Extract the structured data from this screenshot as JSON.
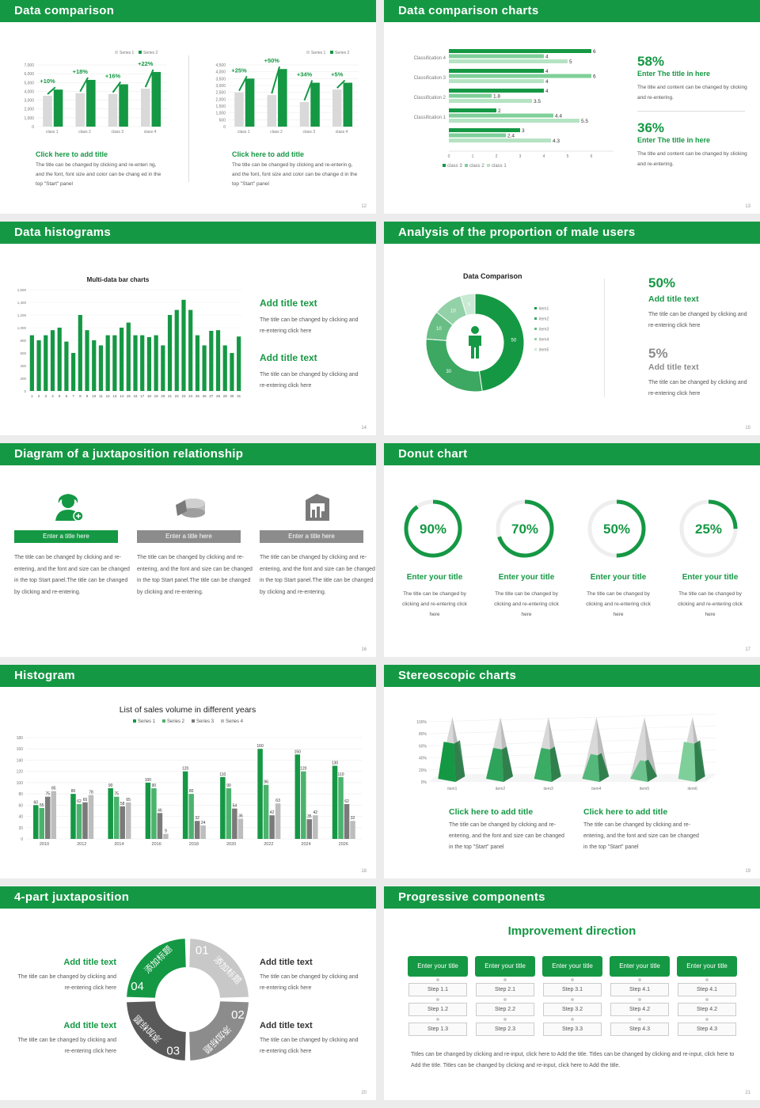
{
  "colors": {
    "green": "#159844",
    "light": "#7fcf9a",
    "pale": "#b5e3c3",
    "gray": "#d9d9d9",
    "dark": "#595959"
  },
  "slides": {
    "s12": {
      "header": "Data comparison",
      "page": "12",
      "legend": [
        "Series 1",
        "Series 2"
      ],
      "chart_left": {
        "yticks": [
          "7,000",
          "6,000",
          "5,000",
          "4,000",
          "3,000",
          "2,000",
          "1,000",
          "0"
        ]
      },
      "chart_right": {
        "yticks": [
          "4,500",
          "4,000",
          "3,500",
          "3,000",
          "2,500",
          "2,000",
          "1,500",
          "1,000",
          "500",
          "0"
        ]
      },
      "left": {
        "title": "Click here to add title",
        "body": "The title can be changed by clicking and re-enteri ng, and the font, font size and color can be chang ed in the top \"Start\" panel"
      },
      "right": {
        "title": "Click here to add title",
        "body": "The title can be changed by clicking and re-enterin g, and the font, font size and color can be change d in the top \"Start\" panel"
      }
    },
    "s13": {
      "header": "Data comparison charts",
      "page": "13",
      "stat1": {
        "value": "58%",
        "title": "Enter The title in here",
        "body": "The title and content can be changed by clicking and re-entering."
      },
      "stat2": {
        "value": "36%",
        "title": "Enter The title in here",
        "body": "The title and content can be changed by clicking and re-entering."
      }
    },
    "s14": {
      "header": "Data histograms",
      "page": "14",
      "block1": {
        "title": "Add title text",
        "body": "The title can be changed by clicking and re-entering click here"
      },
      "block2": {
        "title": "Add title text",
        "body": "The title can be changed by clicking and re-entering click here"
      }
    },
    "s15": {
      "header": "Analysis of the proportion of male users",
      "page": "15",
      "stat1": {
        "value": "50%",
        "title": "Add title text",
        "body": "The title can be changed by clicking and re-entering click here"
      },
      "stat2": {
        "value": "5%",
        "title": "Add title text",
        "body": "The title can be changed by clicking and re-entering click here"
      }
    },
    "s16": {
      "header": "Diagram of a juxtaposition relationship",
      "page": "16",
      "cols": [
        {
          "label": "Enter a title here",
          "body": "The title can be changed by clicking and re-entering, and the font and size can be changed in the top Start panel.The title can be changed by clicking and re-entering."
        },
        {
          "label": "Enter a title here",
          "body": "The title can be changed by clicking and re-entering, and the font and size can be changed in the top Start panel.The title can be changed by clicking and re-entering."
        },
        {
          "label": "Enter a title here",
          "body": "The title can be changed by clicking and re-entering, and the font and size can be changed in the top Start panel.The title can be changed by clicking and re-entering."
        }
      ]
    },
    "s17": {
      "header": "Donut chart",
      "page": "17",
      "items": [
        {
          "pct": "90%",
          "title": "Enter your title",
          "body": "The title can be changed by clicking and re-entering click here"
        },
        {
          "pct": "70%",
          "title": "Enter your title",
          "body": "The title can be changed by clicking and re-entering click here"
        },
        {
          "pct": "50%",
          "title": "Enter your title",
          "body": "The title can be changed by clicking and re-entering click here"
        },
        {
          "pct": "25%",
          "title": "Enter your title",
          "body": "The title can be changed by clicking and re-entering click here"
        }
      ]
    },
    "s18": {
      "header": "Histogram",
      "page": "18"
    },
    "s19": {
      "header": "Stereoscopic charts",
      "page": "19",
      "left": {
        "title": "Click here to add title",
        "body": "The title can be changed by clicking and re-entering, and the font and size can be changed in the top \"Start\" panel"
      },
      "right": {
        "title": "Click here to add title",
        "body": "The title can be changed by clicking and re-entering, and the font and size can be changed in the top \"Start\" panel"
      }
    },
    "s20": {
      "header": "4-part juxtaposition",
      "page": "20",
      "segments": [
        {
          "num": "01",
          "cn": "添加标题"
        },
        {
          "num": "02",
          "cn": "添加标题"
        },
        {
          "num": "03",
          "cn": "添加标题"
        },
        {
          "num": "04",
          "cn": "添加标题"
        }
      ],
      "blocks": [
        {
          "title": "Add title text",
          "body": "The title can be changed by clicking and re-entering click here"
        },
        {
          "title": "Add title text",
          "body": "The title can be changed by clicking and re-entering click here"
        },
        {
          "title": "Add title text",
          "body": "The title can be changed by clicking and re-entering click here"
        },
        {
          "title": "Add title text",
          "body": "The title can be changed by clicking and re-entering click here"
        }
      ]
    },
    "s21": {
      "header": "Progressive components",
      "page": "21",
      "title": "Improvement direction",
      "columns": [
        {
          "head": "Enter your title",
          "steps": [
            "Step 1.1",
            "Step 1.2",
            "Step 1.3"
          ]
        },
        {
          "head": "Enter your title",
          "steps": [
            "Step 2.1",
            "Step 2.2",
            "Step 2.3"
          ]
        },
        {
          "head": "Enter your title",
          "steps": [
            "Step 3.1",
            "Step 3.2",
            "Step 3.3"
          ]
        },
        {
          "head": "Enter your title",
          "steps": [
            "Step 4.1",
            "Step 4.2",
            "Step 4.3"
          ]
        },
        {
          "head": "Enter your title",
          "steps": [
            "Step 4.1",
            "Step 4.2",
            "Step 4.3"
          ]
        }
      ],
      "footer": "Titles can be changed by clicking and re-input, click here to Add the title. Titles can be changed by clicking and re-input, click here to Add the title. Titles can be changed by clicking and re-input, click here to Add the title."
    }
  },
  "chart_data": [
    {
      "type": "bar",
      "id": "s12-left",
      "categories": [
        "class 1",
        "class 2",
        "class 3",
        "class 4"
      ],
      "series": [
        {
          "name": "Series 1",
          "values": [
            3500,
            3800,
            3700,
            4300
          ]
        },
        {
          "name": "Series 2",
          "values": [
            4200,
            5300,
            4800,
            6200
          ]
        }
      ],
      "annotations": [
        "+10%",
        "+18%",
        "+16%",
        "+22%"
      ],
      "ylim": [
        0,
        7000
      ],
      "yticks": [
        "7,000",
        "6,000",
        "5,000",
        "4,000",
        "3,000",
        "2,000",
        "1,000",
        "0"
      ],
      "legend": "top-right"
    },
    {
      "type": "bar",
      "id": "s12-right",
      "categories": [
        "class 1",
        "class 2",
        "class 3",
        "class 4"
      ],
      "series": [
        {
          "name": "Series 1",
          "values": [
            2500,
            2300,
            1800,
            2700
          ]
        },
        {
          "name": "Series 2",
          "values": [
            3500,
            4200,
            3200,
            3200
          ]
        }
      ],
      "annotations": [
        "+25%",
        "+50%",
        "+34%",
        "+5%"
      ],
      "ylim": [
        0,
        4500
      ],
      "yticks": [
        "4,500",
        "4,000",
        "3,500",
        "3,000",
        "2,500",
        "2,000",
        "1,500",
        "1,000",
        "500",
        "0"
      ],
      "legend": "top-right"
    },
    {
      "type": "bar",
      "orientation": "horizontal",
      "id": "s13",
      "categories": [
        "Classification 4",
        "Classification 3",
        "Classification 2",
        "Classification 1"
      ],
      "series": [
        {
          "name": "class 3",
          "values": [
            6,
            4,
            4,
            2
          ]
        },
        {
          "name": "class 2",
          "values": [
            4,
            6,
            1.8,
            4.4
          ]
        },
        {
          "name": "class 1",
          "values": [
            5,
            4,
            3.5,
            5.5
          ]
        }
      ],
      "extra_group": {
        "class 3": 3,
        "class 2": 2.4,
        "class 1": 4.3
      },
      "xlim": [
        0,
        7
      ],
      "xticks": [
        "0",
        "1",
        "2",
        "3",
        "4",
        "5",
        "6",
        "7"
      ],
      "legend": "bottom"
    },
    {
      "type": "bar",
      "id": "s14",
      "title": "Multi-data bar charts",
      "categories": [
        "1",
        "2",
        "3",
        "4",
        "5",
        "6",
        "7",
        "8",
        "9",
        "10",
        "11",
        "12",
        "13",
        "14",
        "15",
        "16",
        "17",
        "18",
        "19",
        "20",
        "21",
        "22",
        "23",
        "24",
        "25",
        "26",
        "27",
        "28",
        "29",
        "30",
        "31"
      ],
      "values": [
        880,
        800,
        880,
        960,
        1000,
        780,
        600,
        1200,
        960,
        800,
        720,
        880,
        880,
        1000,
        1080,
        880,
        880,
        850,
        880,
        720,
        1200,
        1280,
        1440,
        1280,
        880,
        720,
        950,
        960,
        720,
        600,
        860
      ],
      "ylim": [
        0,
        1600
      ],
      "yticks": [
        "1,600",
        "1,400",
        "1,200",
        "1,000",
        "800",
        "600",
        "400",
        "200",
        "0"
      ]
    },
    {
      "type": "pie",
      "id": "s15",
      "title": "Data Comparison",
      "series": [
        {
          "name": "item1",
          "value": 50
        },
        {
          "name": "item2",
          "value": 30
        },
        {
          "name": "item3",
          "value": 10
        },
        {
          "name": "item4",
          "value": 10
        },
        {
          "name": "item5",
          "value": 5
        }
      ],
      "legend": "right"
    },
    {
      "type": "pie",
      "id": "s17",
      "values": [
        90,
        70,
        50,
        25
      ]
    },
    {
      "type": "bar",
      "id": "s18",
      "title": "List of sales volume in different years",
      "categories": [
        "2010",
        "2012",
        "2014",
        "2016",
        "2018",
        "2020",
        "2022",
        "2024",
        "2026"
      ],
      "series": [
        {
          "name": "Series 1",
          "values": [
            60,
            80,
            90,
            100,
            120,
            110,
            160,
            150,
            130
          ]
        },
        {
          "name": "Series 2",
          "values": [
            55,
            62,
            75,
            90,
            80,
            90,
            96,
            120,
            110
          ]
        },
        {
          "name": "Series 3",
          "values": [
            75,
            65,
            58,
            46,
            32,
            54,
            42,
            35,
            62
          ]
        },
        {
          "name": "Series 4",
          "values": [
            85,
            78,
            65,
            9,
            24,
            36,
            63,
            42,
            32
          ]
        }
      ],
      "ylim": [
        0,
        180
      ],
      "yticks": [
        "180",
        "160",
        "140",
        "120",
        "100",
        "80",
        "60",
        "40",
        "20",
        "0"
      ],
      "legend": "top"
    },
    {
      "type": "bar",
      "id": "s19",
      "categories": [
        "item1",
        "item2",
        "item3",
        "item4",
        "item5",
        "item6"
      ],
      "values": [
        0.6,
        0.5,
        0.5,
        0.4,
        0.3,
        0.6
      ],
      "ylim": [
        0,
        1
      ],
      "yticks": [
        "100%",
        "80%",
        "60%",
        "40%",
        "20%",
        "0%"
      ]
    }
  ]
}
